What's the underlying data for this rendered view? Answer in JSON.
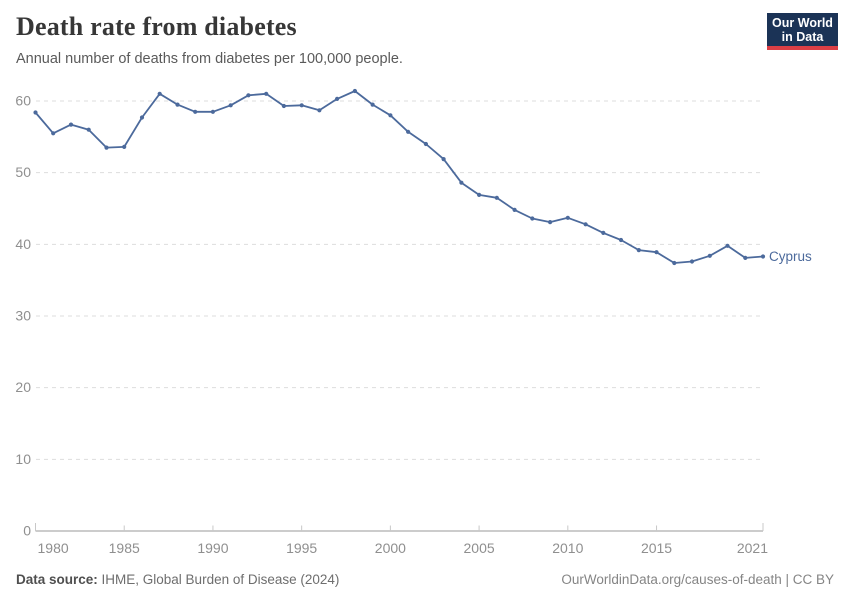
{
  "header": {
    "title": "Death rate from diabetes",
    "subtitle": "Annual number of deaths from diabetes per 100,000 people.",
    "logo": {
      "line1": "Our World",
      "line2": "in Data"
    }
  },
  "chart_data": {
    "type": "line",
    "title": "Death rate from diabetes",
    "subtitle": "Annual number of deaths from diabetes per 100,000 people.",
    "x": [
      1980,
      1981,
      1982,
      1983,
      1984,
      1985,
      1986,
      1987,
      1988,
      1989,
      1990,
      1991,
      1992,
      1993,
      1994,
      1995,
      1996,
      1997,
      1998,
      1999,
      2000,
      2001,
      2002,
      2003,
      2004,
      2005,
      2006,
      2007,
      2008,
      2009,
      2010,
      2011,
      2012,
      2013,
      2014,
      2015,
      2016,
      2017,
      2018,
      2019,
      2020,
      2021
    ],
    "series": [
      {
        "name": "Cyprus",
        "color": "#4c6a9c",
        "values": [
          58.4,
          55.5,
          56.7,
          56.0,
          53.5,
          53.6,
          57.7,
          61.0,
          59.5,
          58.5,
          58.5,
          59.4,
          60.8,
          61.0,
          59.3,
          59.4,
          58.7,
          60.3,
          61.4,
          59.5,
          58.0,
          55.7,
          54.0,
          51.9,
          48.6,
          46.9,
          46.5,
          44.8,
          43.6,
          43.1,
          43.7,
          42.8,
          41.6,
          40.6,
          39.2,
          38.9,
          37.4,
          37.6,
          38.4,
          39.8,
          38.1,
          38.3
        ]
      }
    ],
    "xlabel": "",
    "ylabel": "",
    "xlim": [
      1980,
      2021
    ],
    "ylim": [
      0,
      62
    ],
    "x_ticks": [
      1980,
      1985,
      1990,
      1995,
      2000,
      2005,
      2010,
      2015,
      2021
    ],
    "y_ticks": [
      0,
      10,
      20,
      30,
      40,
      50,
      60
    ],
    "grid": "horizontal-dashed",
    "legend": "inline-label-right"
  },
  "footer": {
    "source_label": "Data source:",
    "source_text": " IHME, Global Burden of Disease (2024)",
    "credit": "OurWorldinData.org/causes-of-death | CC BY"
  },
  "colors": {
    "series_line": "#4c6a9c",
    "logo_bg": "#1b3356",
    "logo_accent": "#dc3f45",
    "gridline": "#dddddd",
    "axis_line": "#999999",
    "tick_label": "#8f8f8f",
    "title_text": "#373737",
    "subtitle_text": "#5a5a5a",
    "footer_text": "#858585"
  }
}
